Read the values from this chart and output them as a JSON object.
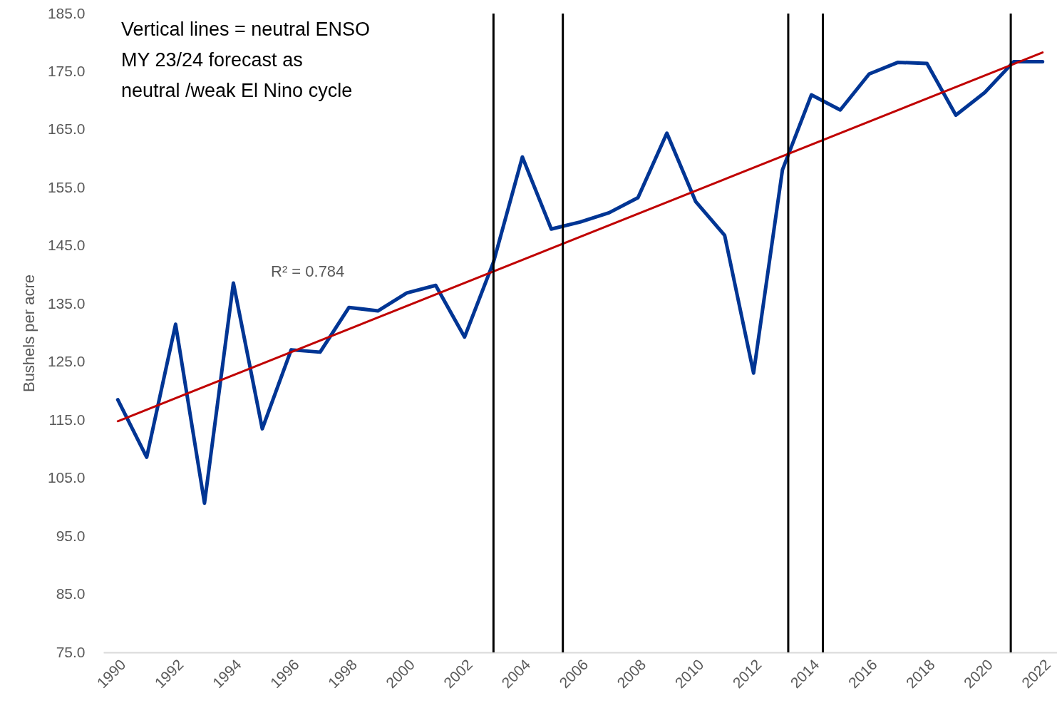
{
  "chart_data": {
    "type": "line",
    "ylabel": "Bushels per acre",
    "annotations": [
      "Vertical lines = neutral ENSO\nMY 23/24 forecast as\nneutral /weak El Nino cycle",
      "R² = 0.784"
    ],
    "x": [
      1990,
      1991,
      1992,
      1993,
      1994,
      1995,
      1996,
      1997,
      1998,
      1999,
      2000,
      2001,
      2002,
      2003,
      2004,
      2005,
      2006,
      2007,
      2008,
      2009,
      2010,
      2011,
      2012,
      2013,
      2014,
      2015,
      2016,
      2017,
      2018,
      2019,
      2020,
      2021,
      2022
    ],
    "series": [
      {
        "color": "#003594",
        "values": [
          118.5,
          108.6,
          131.5,
          100.7,
          138.6,
          113.5,
          127.1,
          126.7,
          134.4,
          133.8,
          136.9,
          138.2,
          129.3,
          142.2,
          160.3,
          147.9,
          149.1,
          150.7,
          153.3,
          164.4,
          152.6,
          146.8,
          123.1,
          158.1,
          171.0,
          168.4,
          174.6,
          176.6,
          176.4,
          167.5,
          171.4,
          176.7,
          176.7
        ]
      },
      {
        "type": "line",
        "color": "#c00000",
        "x": [
          1990,
          2022
        ],
        "values": [
          114.8,
          178.3
        ]
      }
    ],
    "xlim": [
      1989.5,
      2022.5
    ],
    "xticks": [
      1990,
      1992,
      1994,
      1996,
      1998,
      2000,
      2002,
      2004,
      2006,
      2008,
      2010,
      2012,
      2014,
      2016,
      2018,
      2020,
      2022
    ],
    "ylim": [
      75,
      185
    ],
    "yticks": [
      {
        "value": 75,
        "label": "75.0"
      },
      {
        "value": 85,
        "label": "85.0"
      },
      {
        "value": 95,
        "label": "95.0"
      },
      {
        "value": 105,
        "label": "105.0"
      },
      {
        "value": 115,
        "label": "115.0"
      },
      {
        "value": 125,
        "label": "125.0"
      },
      {
        "value": 135,
        "label": "135.0"
      },
      {
        "value": 145,
        "label": "145.0"
      },
      {
        "value": 155,
        "label": "155.0"
      },
      {
        "value": 165,
        "label": "165.0"
      },
      {
        "value": 175,
        "label": "175.0"
      },
      {
        "value": 185,
        "label": "185.0"
      }
    ],
    "ref_lines": [
      {
        "axis": "x",
        "value": 2003.0,
        "color": "#000000"
      },
      {
        "axis": "x",
        "value": 2005.4,
        "color": "#000000"
      },
      {
        "axis": "x",
        "value": 2013.2,
        "color": "#000000"
      },
      {
        "axis": "x",
        "value": 2014.4,
        "color": "#000000"
      },
      {
        "axis": "x",
        "value": 2020.9,
        "color": "#000000"
      }
    ]
  }
}
